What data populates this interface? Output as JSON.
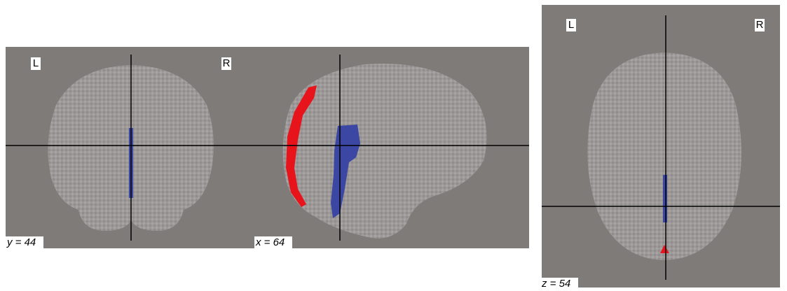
{
  "panels": [
    {
      "left": "L",
      "right": "R",
      "coordinate": "y = 44"
    },
    {
      "coordinate": "x = 64"
    },
    {
      "left": "L",
      "right": "R",
      "coordinate": "z = 54"
    }
  ]
}
